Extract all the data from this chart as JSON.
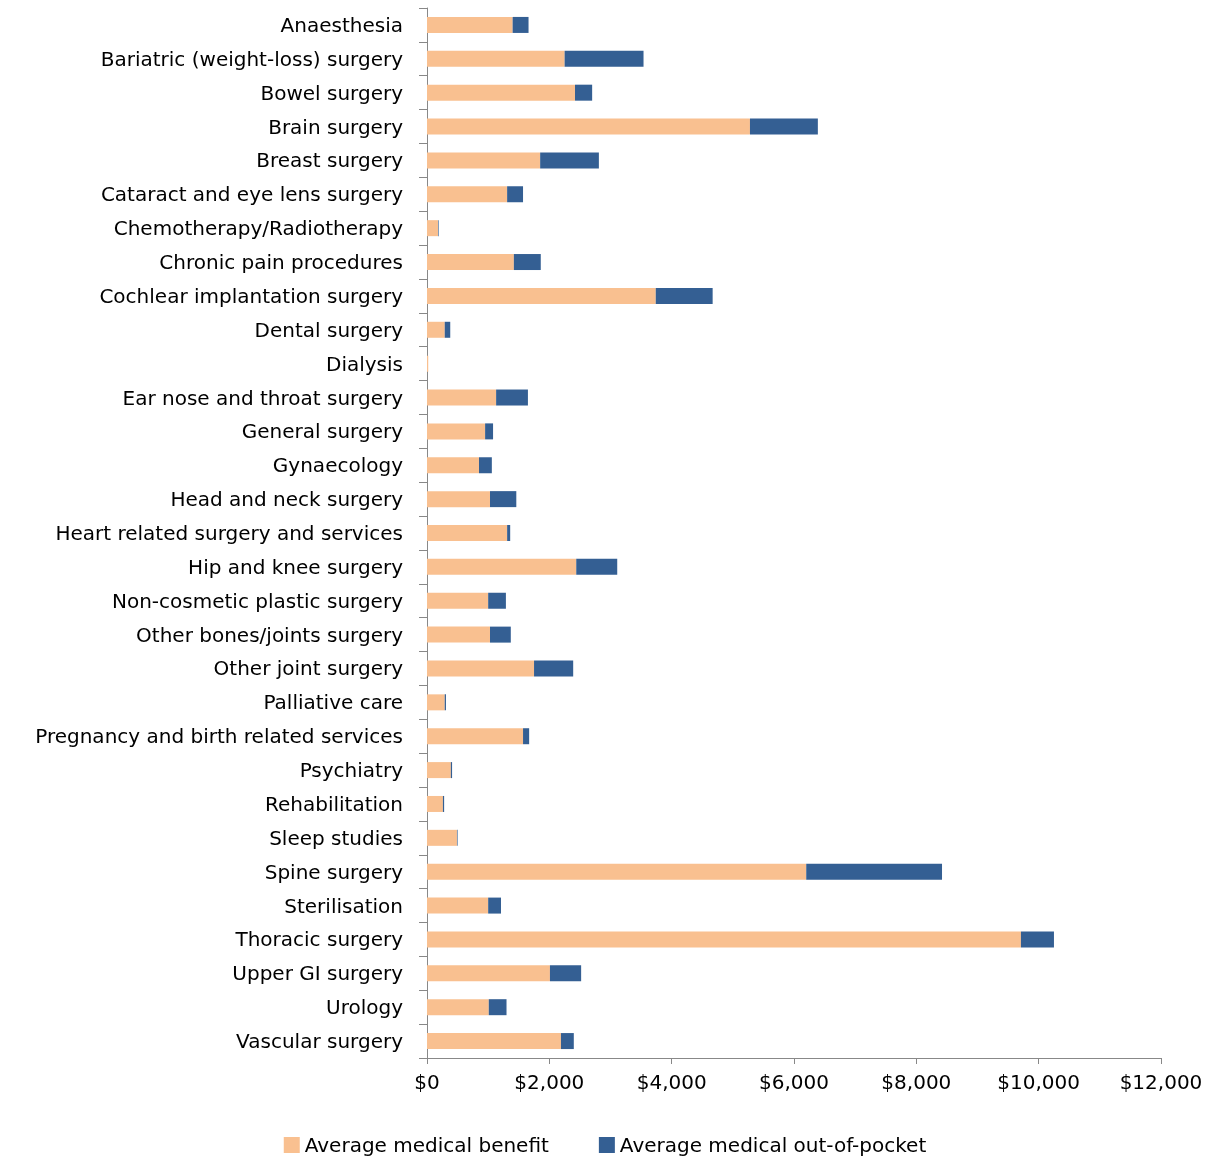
{
  "chart_data": {
    "type": "bar",
    "orientation": "horizontal",
    "stacked": true,
    "categories": [
      "Anaesthesia",
      "Bariatric (weight-loss) surgery",
      "Bowel surgery",
      "Brain surgery",
      "Breast surgery",
      "Cataract and eye lens surgery",
      "Chemotherapy/Radiotherapy",
      "Chronic pain procedures",
      "Cochlear implantation surgery",
      "Dental surgery",
      "Dialysis",
      "Ear nose and throat surgery",
      "General surgery",
      "Gynaecology",
      "Head and neck surgery",
      "Heart related surgery and services",
      "Hip and knee surgery",
      "Non-cosmetic plastic surgery",
      "Other bones/joints surgery",
      "Other joint surgery",
      "Palliative care",
      "Pregnancy and birth related services",
      "Psychiatry",
      "Rehabilitation",
      "Sleep studies",
      "Spine surgery",
      "Sterilisation",
      "Thoracic surgery",
      "Upper GI surgery",
      "Urology",
      "Vascular surgery"
    ],
    "series": [
      {
        "name": "Average medical benefit",
        "color": "#f9c090",
        "values": [
          1400,
          2250,
          2420,
          5280,
          1850,
          1310,
          180,
          1420,
          3740,
          290,
          20,
          1130,
          950,
          850,
          1030,
          1310,
          2440,
          1000,
          1030,
          1750,
          290,
          1570,
          390,
          260,
          490,
          6200,
          1000,
          9710,
          2010,
          1010,
          2190
        ]
      },
      {
        "name": "Average medical out-of-pocket",
        "color": "#345f93",
        "values": [
          260,
          1290,
          280,
          1110,
          960,
          260,
          10,
          440,
          930,
          90,
          0,
          520,
          130,
          210,
          430,
          50,
          670,
          290,
          340,
          640,
          20,
          100,
          20,
          20,
          10,
          2220,
          210,
          540,
          510,
          290,
          210
        ]
      }
    ],
    "xlim": [
      0,
      12000
    ],
    "xticks": [
      {
        "value": 0,
        "label": "$0"
      },
      {
        "value": 2000,
        "label": "$2,000"
      },
      {
        "value": 4000,
        "label": "$4,000"
      },
      {
        "value": 6000,
        "label": "$6,000"
      },
      {
        "value": 8000,
        "label": "$8,000"
      },
      {
        "value": 10000,
        "label": "$10,000"
      },
      {
        "value": 12000,
        "label": "$12,000"
      }
    ],
    "grid": false,
    "legend": "bottom"
  }
}
